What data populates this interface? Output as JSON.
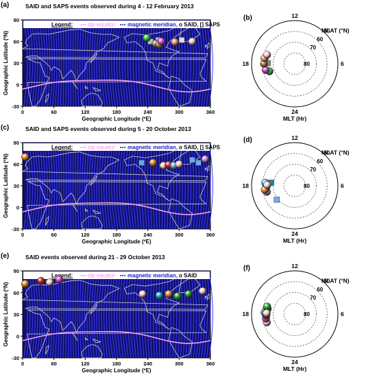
{
  "chart_data": [
    {
      "panel": "(a)",
      "type": "scatter",
      "title": "SAID and SAPS events observed during 4 - 12 February 2013",
      "legend_label": "Legend:",
      "legend_items": [
        "dip equator",
        "magnetic meridian,",
        "o SAID, [] SAPS"
      ],
      "xlabel": "Geographic Longitude (ºE)",
      "ylabel": "Geographic Latitude (ºN)",
      "xlim": [
        0,
        360
      ],
      "ylim": [
        -30,
        90
      ],
      "xticks": [
        "0",
        "60",
        "120",
        "180",
        "240",
        "300",
        "360"
      ],
      "yticks": [
        "90",
        "60",
        "30",
        "0",
        "-30"
      ],
      "said": [
        {
          "x": 238,
          "y": 65,
          "color": "#33cc33"
        },
        {
          "x": 255,
          "y": 57,
          "color": "#888888"
        },
        {
          "x": 262,
          "y": 56,
          "color": "#b0903a"
        },
        {
          "x": 266,
          "y": 60,
          "color": "#dd44dd"
        },
        {
          "x": 292,
          "y": 59,
          "color": "#f09a66"
        },
        {
          "x": 325,
          "y": 60,
          "color": "#ffcccc"
        }
      ],
      "saps": [
        {
          "x": 245,
          "y": 60,
          "color": "#bbbbbb"
        },
        {
          "x": 260,
          "y": 62,
          "color": "#bbbbbb"
        },
        {
          "x": 305,
          "y": 62,
          "color": "#dddddd"
        }
      ]
    },
    {
      "panel": "(b)",
      "type": "scatter",
      "polar_top": "12",
      "polar_left": "18",
      "polar_right": "6",
      "polar_bottom": "24",
      "mlat_label": "MLAT (°N)",
      "mlt_label": "MLT (Hr)",
      "rings": [
        "50",
        "60",
        "70",
        "80"
      ],
      "said": [
        {
          "mlt": 19.1,
          "mlat": 65.5,
          "color": "#33cc33"
        },
        {
          "mlt": 18.8,
          "mlat": 62.5,
          "color": "#dd44dd"
        },
        {
          "mlt": 18.0,
          "mlat": 61.5,
          "color": "#9b7a30"
        },
        {
          "mlt": 17.3,
          "mlat": 61.5,
          "color": "#f09a66"
        },
        {
          "mlt": 16.8,
          "mlat": 63.0,
          "color": "#ffcccc"
        }
      ],
      "saps": [
        {
          "mlt": 17.9,
          "mlat": 65.0,
          "color": "#888888"
        }
      ]
    },
    {
      "panel": "(c)",
      "type": "scatter",
      "title": "SAID and SAPS events observed during 5 - 20 October 2013",
      "legend_label": "Legend:",
      "legend_items": [
        "dip equator",
        "magnetic meridian,",
        "o SAID, [] SAPS"
      ],
      "xlabel": "Geographic Longitude (ºE)",
      "ylabel": "Geographic Latitude (ºN)",
      "xlim": [
        0,
        360
      ],
      "ylim": [
        -30,
        90
      ],
      "xticks": [
        "0",
        "60",
        "120",
        "180",
        "240",
        "300",
        "360"
      ],
      "yticks": [
        "90",
        "60",
        "30",
        "0",
        "-30"
      ],
      "said": [
        {
          "x": 5,
          "y": 70,
          "color": "#f08820"
        },
        {
          "x": 250,
          "y": 62,
          "color": "#f08820"
        },
        {
          "x": 270,
          "y": 58,
          "color": "#ffcccc"
        },
        {
          "x": 280,
          "y": 59,
          "color": "#cc2222"
        },
        {
          "x": 290,
          "y": 58,
          "color": "#66aadd"
        },
        {
          "x": 300,
          "y": 60,
          "color": "#ffcccc"
        },
        {
          "x": 350,
          "y": 67,
          "color": "#cc88dd"
        }
      ],
      "saps": [
        {
          "x": 228,
          "y": 62,
          "color": "#66aaee"
        },
        {
          "x": 325,
          "y": 66,
          "color": "#66aaee"
        },
        {
          "x": 337,
          "y": 62,
          "color": "#66aaee"
        }
      ]
    },
    {
      "panel": "(d)",
      "type": "scatter",
      "polar_top": "12",
      "polar_left": "18",
      "polar_right": "6",
      "polar_bottom": "24",
      "mlat_label": "MLAT (°N)",
      "mlt_label": "MLT (Hr)",
      "rings": [
        "50",
        "60",
        "70",
        "80"
      ],
      "said": [
        {
          "mlt": 18.8,
          "mlat": 63.5,
          "color": "#cc88dd"
        },
        {
          "mlt": 18.2,
          "mlat": 63.5,
          "color": "#cc2222"
        },
        {
          "mlt": 17.6,
          "mlat": 62.5,
          "color": "#66aadd"
        },
        {
          "mlt": 18.5,
          "mlat": 62.0,
          "color": "#f08820"
        },
        {
          "mlt": 17.9,
          "mlat": 64.5,
          "color": "#ffcccc"
        }
      ],
      "saps": [
        {
          "mlt": 20.5,
          "mlat": 69.0,
          "color": "#77aaee"
        },
        {
          "mlt": 17.5,
          "mlat": 68.0,
          "color": "#228899"
        },
        {
          "mlt": 18.3,
          "mlat": 64.0,
          "color": "#66aaee"
        }
      ]
    },
    {
      "panel": "(e)",
      "type": "scatter",
      "title": "SAID events observed during 21 - 29 October 2013",
      "legend_label": "Legend:",
      "legend_items": [
        "dip equator",
        "magnetic meridian,",
        "o SAID"
      ],
      "xlabel": "Geographic Longitude (ºE)",
      "ylabel": "Geographic Latitude (ºN)",
      "xlim": [
        0,
        360
      ],
      "ylim": [
        -30,
        90
      ],
      "xticks": [
        "0",
        "60",
        "120",
        "180",
        "240",
        "300",
        "360"
      ],
      "yticks": [
        "90",
        "60",
        "30",
        "0",
        "-30"
      ],
      "said": [
        {
          "x": 5,
          "y": 72,
          "color": "#f08820"
        },
        {
          "x": 35,
          "y": 76,
          "color": "#cc2222"
        },
        {
          "x": 52,
          "y": 74,
          "color": "#ffcccc"
        },
        {
          "x": 70,
          "y": 78,
          "color": "#dd44dd"
        },
        {
          "x": 230,
          "y": 58,
          "color": "#ffcccc"
        },
        {
          "x": 262,
          "y": 56,
          "color": "#22aacc"
        },
        {
          "x": 280,
          "y": 58,
          "color": "#f08820"
        },
        {
          "x": 297,
          "y": 55,
          "color": "#22aa22"
        },
        {
          "x": 318,
          "y": 58,
          "color": "#22aa22"
        },
        {
          "x": 345,
          "y": 62,
          "color": "#ffcccc"
        }
      ],
      "saps": []
    },
    {
      "panel": "(f)",
      "type": "scatter",
      "polar_top": "12",
      "polar_left": "18",
      "polar_right": "6",
      "polar_bottom": "24",
      "mlat_label": "MLAT (°N)",
      "mlt_label": "MLT (Hr)",
      "rings": [
        "50",
        "60",
        "70",
        "80"
      ],
      "said": [
        {
          "mlt": 19.1,
          "mlat": 63.0,
          "color": "#ffcccc"
        },
        {
          "mlt": 18.6,
          "mlat": 63.0,
          "color": "#dd44dd"
        },
        {
          "mlt": 18.2,
          "mlat": 63.5,
          "color": "#cc2222"
        },
        {
          "mlt": 17.8,
          "mlat": 62.0,
          "color": "#22aacc"
        },
        {
          "mlt": 17.5,
          "mlat": 63.5,
          "color": "#f08820"
        },
        {
          "mlt": 17.3,
          "mlat": 64.5,
          "color": "#22aa22"
        },
        {
          "mlt": 17.0,
          "mlat": 63.5,
          "color": "#22aa22"
        },
        {
          "mlt": 17.9,
          "mlat": 64.0,
          "color": "#ffcccc"
        }
      ],
      "saps": []
    }
  ],
  "colors": {
    "map_background": "#10106e",
    "meridian": "#3c3cff",
    "dip_equator": "#ffaaf0",
    "land_outline": "#cfcfcf"
  }
}
